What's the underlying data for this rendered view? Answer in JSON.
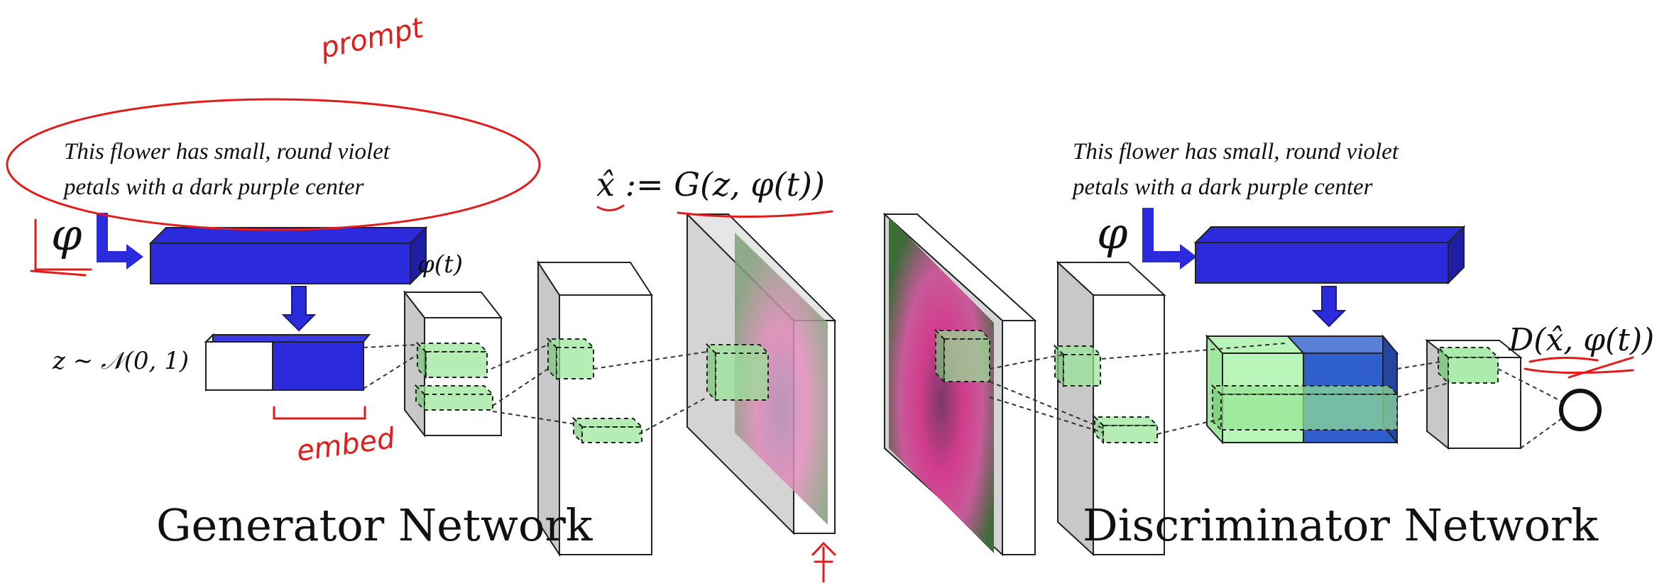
{
  "generator": {
    "prompt": [
      "This flower has small, round violet",
      "petals with a dark purple center"
    ],
    "phi_symbol": "φ",
    "embedding_label": "φ(t)",
    "noise_label": "z ∼ 𝒩(0, 1)",
    "output_label": "x̂ := G(z, φ(t))",
    "title": "Generator Network"
  },
  "discriminator": {
    "prompt": [
      "This flower has small, round violet",
      "petals with a dark purple center"
    ],
    "phi_symbol": "φ",
    "output_label": "D(x̂, φ(t))",
    "title": "Discriminator Network"
  },
  "annotations": {
    "prompt": "prompt",
    "embed": "embed"
  }
}
